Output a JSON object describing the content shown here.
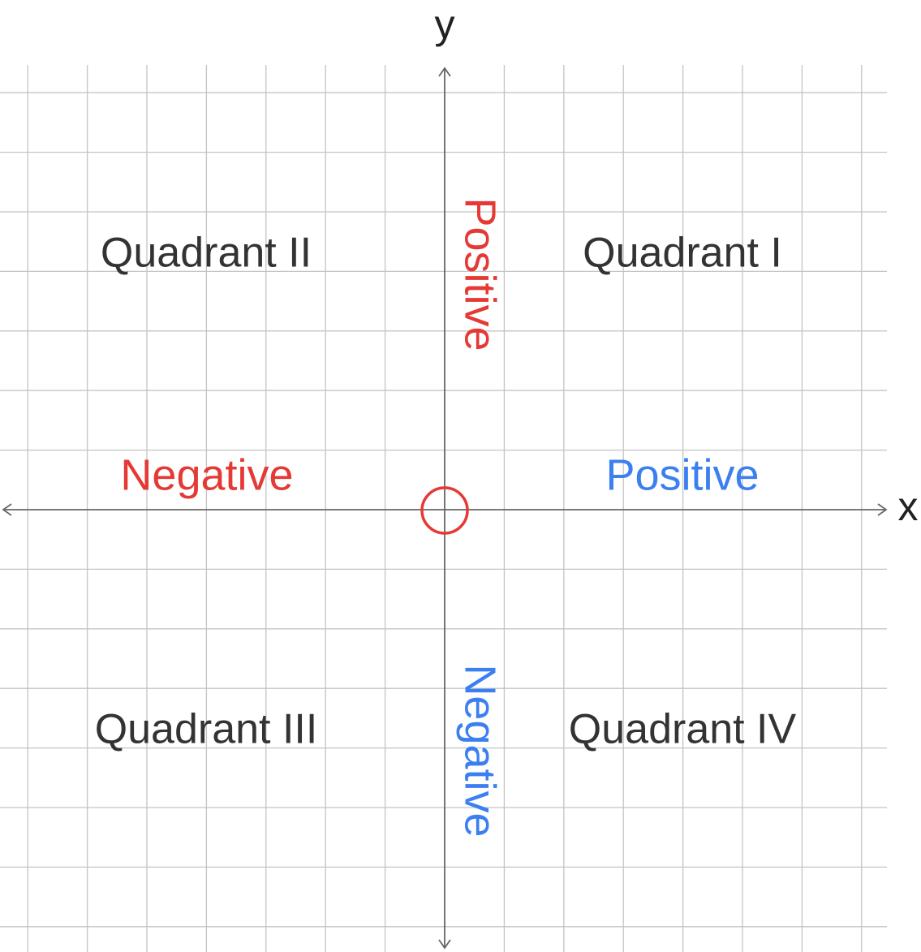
{
  "axes": {
    "x": "x",
    "y": "y"
  },
  "quadrants": {
    "first": "Quadrant I",
    "second": "Quadrant II",
    "third": "Quadrant III",
    "fourth": "Quadrant IV"
  },
  "x_axis": {
    "negative": "Negative",
    "positive": "Positive"
  },
  "y_axis": {
    "positive": "Positive",
    "negative": "Negative"
  }
}
